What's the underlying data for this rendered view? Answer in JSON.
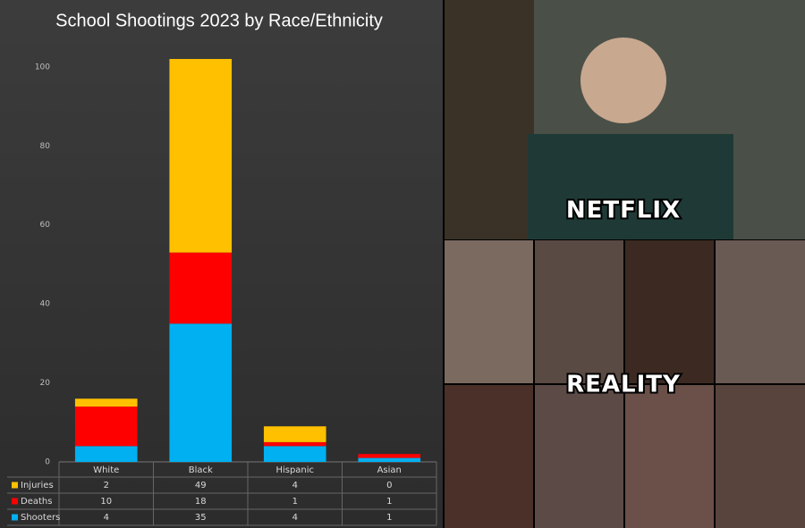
{
  "chart_data": {
    "type": "stacked-bar",
    "title": "School Shootings 2023 by Race/Ethnicity",
    "categories": [
      "White",
      "Black",
      "Hispanic",
      "Asian"
    ],
    "series": [
      {
        "name": "Injuries",
        "color": "#ffc000",
        "values": [
          2,
          49,
          4,
          0
        ]
      },
      {
        "name": "Deaths",
        "color": "#ff0000",
        "values": [
          10,
          18,
          1,
          1
        ]
      },
      {
        "name": "Shooters",
        "color": "#00b0f0",
        "values": [
          4,
          35,
          4,
          1
        ]
      }
    ],
    "ylim": [
      0,
      102
    ],
    "yticks": [
      0,
      20,
      40,
      60,
      80,
      100
    ],
    "grid": false,
    "legend": "table"
  },
  "overlay_labels": [
    "NETFLIX",
    "REALITY"
  ]
}
